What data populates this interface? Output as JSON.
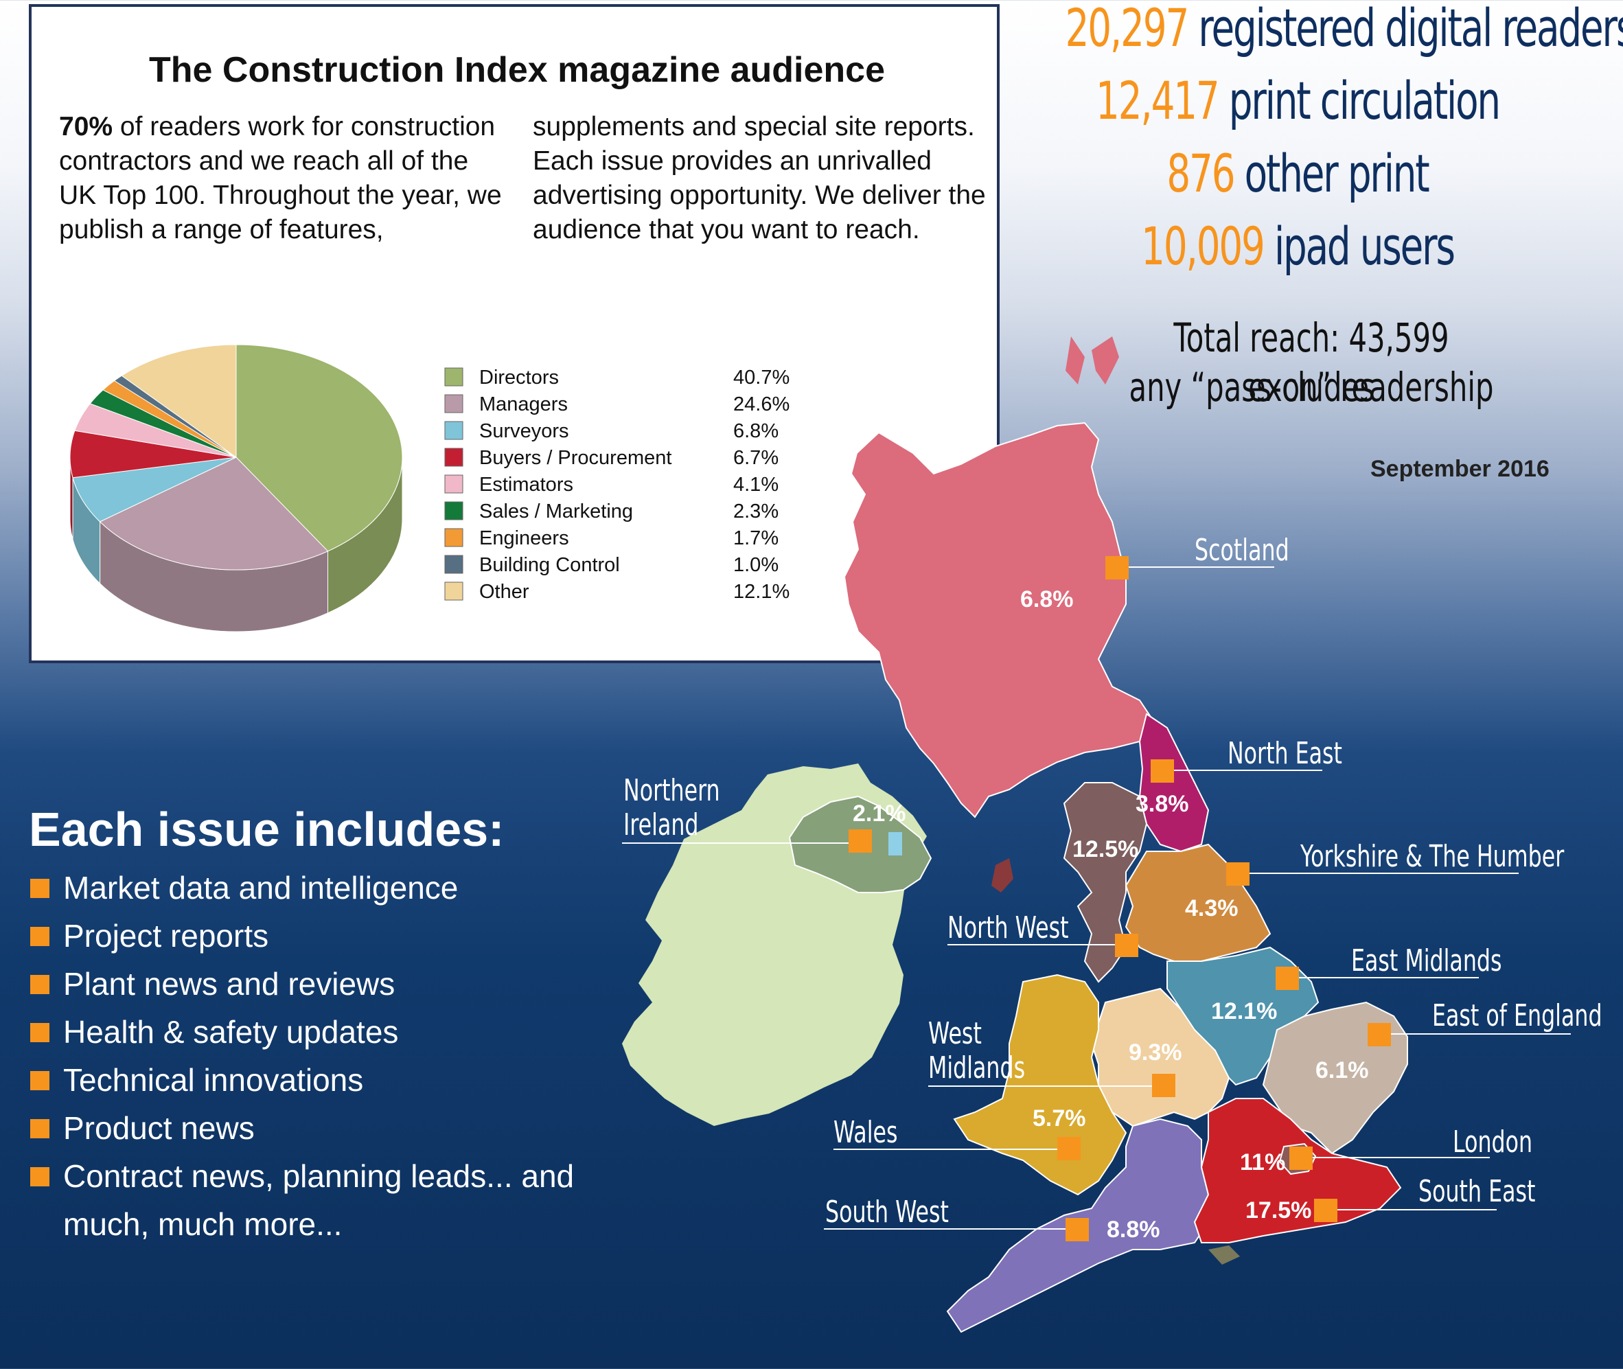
{
  "panel": {
    "title": "The Construction Index magazine audience",
    "para_left_bold": "70%",
    "para_left": " of readers work for construction contractors and we reach all of the UK Top 100. Throughout the year, we publish a range of features,",
    "para_right": "supplements and special site reports. Each issue provides  an unrivalled advertising opportunity. We deliver the audience that you want to reach."
  },
  "stats": [
    {
      "number": "20,297",
      "label": "registered digital readers"
    },
    {
      "number": "12,417",
      "label": "print circulation"
    },
    {
      "number": "876",
      "label": "other print"
    },
    {
      "number": "10,009",
      "label": "ipad users"
    }
  ],
  "reach": {
    "line1": "Total reach: 43,599 excludes",
    "line2": "any “pass-on” readership"
  },
  "date": "September 2016",
  "issue": {
    "title": "Each issue includes:",
    "items": [
      "Market data and intelligence",
      "Project reports",
      "Plant news and reviews",
      "Health & safety updates",
      "Technical innovations",
      "Product news",
      "Contract news, planning leads... and",
      "much, much more..."
    ]
  },
  "chart_data": [
    {
      "type": "pie",
      "categories": [
        "Directors",
        "Managers",
        "Surveyors",
        "Buyers / Procurement",
        "Estimators",
        "Sales / Marketing",
        "Engineers",
        "Building Control",
        "Other"
      ],
      "values": [
        40.7,
        24.6,
        6.8,
        6.7,
        4.1,
        2.3,
        1.7,
        1.0,
        12.1
      ],
      "value_labels": [
        "40.7%",
        "24.6%",
        "6.8%",
        "6.7%",
        "4.1%",
        "2.3%",
        "1.7%",
        "1.0%",
        "12.1%"
      ],
      "colors": [
        "#9db56c",
        "#b99aa8",
        "#7fc4d8",
        "#c31f32",
        "#f0b8c8",
        "#147a3a",
        "#f29a36",
        "#566f82",
        "#f0d49a"
      ],
      "legend": "right"
    },
    {
      "type": "map",
      "regions": [
        {
          "name": "Scotland",
          "pct": "6.8%",
          "color": "#dc6b7c"
        },
        {
          "name": "North East",
          "pct": "3.8%",
          "color": "#b01e6a"
        },
        {
          "name": "North West",
          "pct": "12.5%",
          "color": "#7e5e5e"
        },
        {
          "name": "Yorkshire & The Humber",
          "pct": "4.3%",
          "color": "#d08a3e"
        },
        {
          "name": "East Midlands",
          "pct": "12.1%",
          "color": "#4f93ad"
        },
        {
          "name": "East of England",
          "pct": "6.1%",
          "color": "#c5b4a5"
        },
        {
          "name": "West Midlands",
          "pct": "9.3%",
          "color": "#f0d0a0"
        },
        {
          "name": "Wales",
          "pct": "5.7%",
          "color": "#d9aa2e"
        },
        {
          "name": "London",
          "pct": "11%",
          "color": "#8a5a5a"
        },
        {
          "name": "South East",
          "pct": "17.5%",
          "color": "#cc2028"
        },
        {
          "name": "South West",
          "pct": "8.8%",
          "color": "#7f72b8"
        },
        {
          "name": "Northern Ireland",
          "pct": "2.1%",
          "color": "#86a07a"
        }
      ],
      "label_parts": {
        "ni_line1": "Northern",
        "ni_line2": "Ireland",
        "wm_line1": "West",
        "wm_line2": "Midlands"
      },
      "colors": {
        "ireland": "#d5e6b8",
        "marker": "#f7941d"
      }
    }
  ]
}
